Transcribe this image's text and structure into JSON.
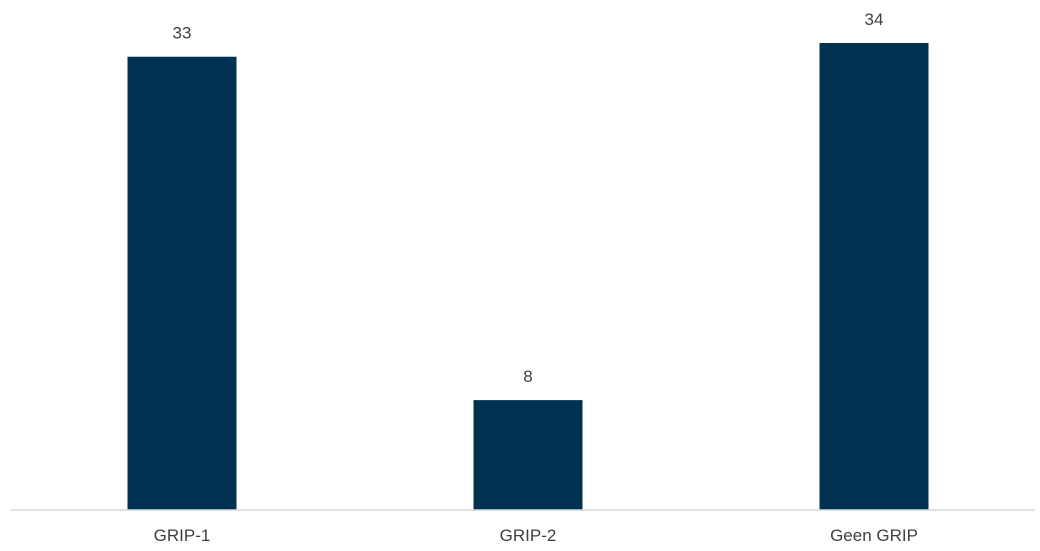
{
  "chart_data": {
    "type": "bar",
    "categories": [
      "GRIP-1",
      "GRIP-2",
      "Geen GRIP"
    ],
    "values": [
      33,
      8,
      34
    ],
    "ylim": [
      0,
      34
    ],
    "grid": false,
    "legend": "none",
    "data_labels": true,
    "bar_color": "#003150",
    "axis_color": "#d9d9d9",
    "text_color": "#404040"
  }
}
